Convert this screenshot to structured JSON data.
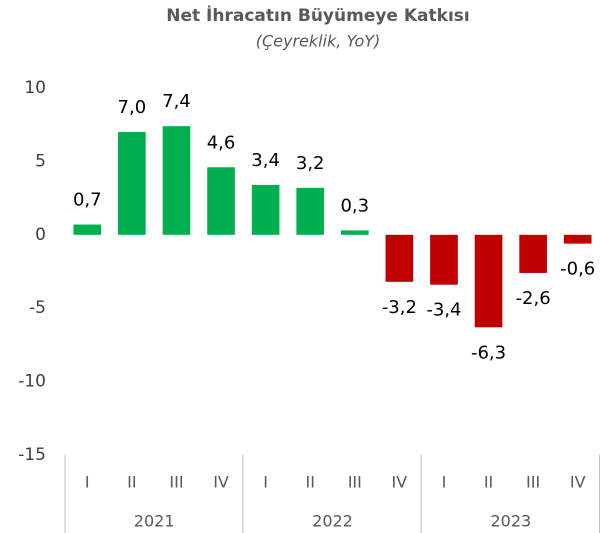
{
  "chart_data": {
    "type": "bar",
    "title": "Net İhracatın Büyümeye Katkısı",
    "subtitle": "(Çeyreklik, YoY)",
    "categories": [
      "I",
      "II",
      "III",
      "IV",
      "I",
      "II",
      "III",
      "IV",
      "I",
      "II",
      "III",
      "IV"
    ],
    "groups": [
      {
        "label": "2021",
        "count": 4
      },
      {
        "label": "2022",
        "count": 4
      },
      {
        "label": "2023",
        "count": 4
      }
    ],
    "values": [
      0.7,
      7.0,
      7.4,
      4.6,
      3.4,
      3.2,
      0.3,
      -3.2,
      -3.4,
      -6.3,
      -2.6,
      -0.6
    ],
    "value_labels": [
      "0,7",
      "7,0",
      "7,4",
      "4,6",
      "3,4",
      "3,2",
      "0,3",
      "-3,2",
      "-3,4",
      "-6,3",
      "-2,6",
      "-0,6"
    ],
    "colors": [
      "#00b050",
      "#00b050",
      "#00b050",
      "#00b050",
      "#00b050",
      "#00b050",
      "#00b050",
      "#c00000",
      "#c00000",
      "#c00000",
      "#c00000",
      "#c00000"
    ],
    "ylim": [
      -15,
      10
    ],
    "yticks": [
      10,
      5,
      0,
      -5,
      -10,
      -15
    ],
    "grid": false
  }
}
